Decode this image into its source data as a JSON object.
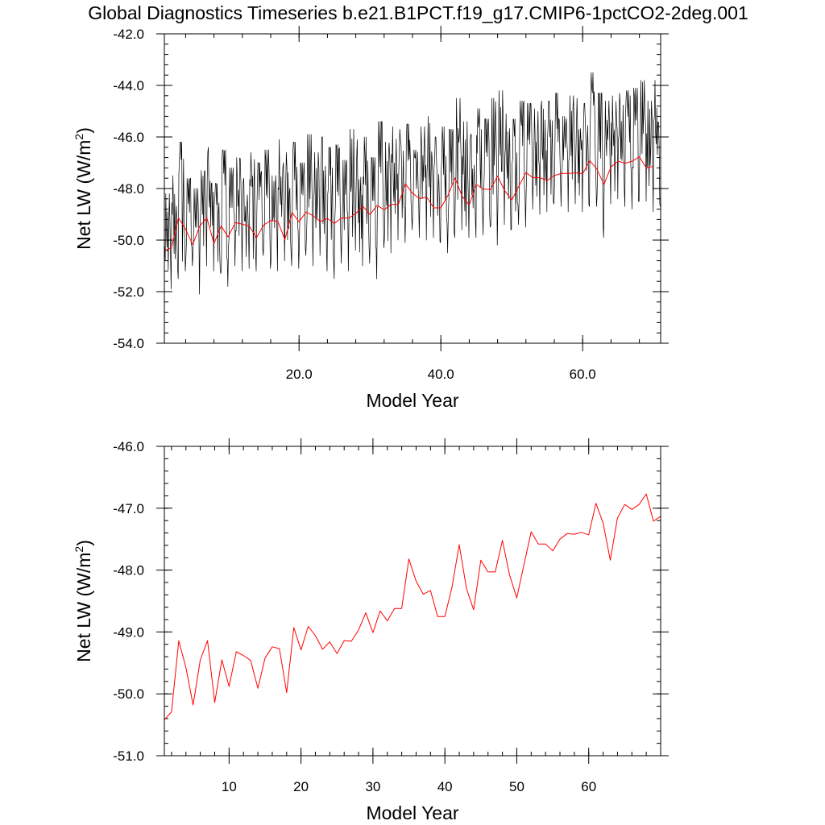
{
  "title": "Global Diagnostics Timeseries b.e21.B1PCT.f19_g17.CMIP6-1pctCO2-2deg.001",
  "colors": {
    "monthly": "#000000",
    "annual": "#ff0000",
    "axes": "#000000"
  },
  "chart_data": [
    {
      "type": "line",
      "name": "top-panel",
      "xlabel": "Model Year",
      "ylabel": "Net LW (W/m",
      "ylabel_sup": "2",
      "ylabel_end": ")",
      "xlim": [
        1,
        71
      ],
      "ylim": [
        -54,
        -42
      ],
      "x_major_ticks": [
        20,
        40,
        60
      ],
      "x_tick_labels": [
        "20.0",
        "40.0",
        "60.0"
      ],
      "x_minor_step": 4,
      "y_major_ticks": [
        -54,
        -52,
        -50,
        -48,
        -46,
        -44,
        -42
      ],
      "y_tick_labels": [
        "-54.0",
        "-52.0",
        "-50.0",
        "-48.0",
        "-46.0",
        "-44.0",
        "-42.0"
      ],
      "y_minor_step": 0.4,
      "series": [
        {
          "name": "monthly",
          "description": "monthly mean net LW (Jan-Dec each model year)",
          "color": "#000000",
          "x_start": 1.0417,
          "x_step": 0.08333,
          "annual_peaks": [
            -48.2,
            -47.5,
            -46.2,
            -47.6,
            -48.0,
            -47.3,
            -46.4,
            -47.8,
            -46.5,
            -47.2,
            -46.8,
            -47.6,
            -46.6,
            -47.0,
            -46.5,
            -47.5,
            -46.1,
            -46.6,
            -46.2,
            -47.0,
            -45.9,
            -46.6,
            -46.0,
            -46.4,
            -46.3,
            -46.9,
            -45.7,
            -46.1,
            -46.0,
            -46.8,
            -45.4,
            -46.2,
            -45.6,
            -45.7,
            -45.5,
            -46.5,
            -45.6,
            -45.2,
            -46.0,
            -45.6,
            -45.7,
            -44.5,
            -45.4,
            -45.9,
            -44.9,
            -45.3,
            -44.5,
            -44.2,
            -45.1,
            -45.3,
            -44.6,
            -44.7,
            -44.9,
            -44.6,
            -44.6,
            -44.3,
            -45.2,
            -44.4,
            -44.5,
            -44.7,
            -43.5,
            -44.3,
            -44.6,
            -44.4,
            -44.3,
            -44.2,
            -44.1,
            -43.8,
            -44.6,
            -43.8
          ],
          "annual_troughs": [
            -51.9,
            -51.5,
            -51.2,
            -51.0,
            -52.1,
            -51.0,
            -51.2,
            -51.3,
            -51.8,
            -51.0,
            -51.2,
            -51.1,
            -51.2,
            -50.6,
            -51.1,
            -51.2,
            -50.8,
            -51.0,
            -51.1,
            -50.6,
            -51.0,
            -50.6,
            -51.2,
            -51.5,
            -50.9,
            -51.2,
            -50.4,
            -51.0,
            -50.9,
            -51.5,
            -50.3,
            -50.5,
            -50.0,
            -50.1,
            -49.6,
            -49.9,
            -50.0,
            -49.9,
            -50.1,
            -50.5,
            -49.9,
            -49.6,
            -49.9,
            -49.9,
            -49.8,
            -49.5,
            -50.2,
            -49.4,
            -49.6,
            -49.4,
            -49.5,
            -48.8,
            -49.0,
            -48.9,
            -48.6,
            -48.7,
            -48.9,
            -48.6,
            -48.9,
            -48.7,
            -48.7,
            -49.9,
            -48.6,
            -48.4,
            -48.7,
            -48.8,
            -48.5,
            -48.5,
            -48.9,
            -48.7
          ]
        },
        {
          "name": "annual",
          "description": "annual mean net LW",
          "color": "#ff0000",
          "x": [
            1,
            2,
            3,
            4,
            5,
            6,
            7,
            8,
            9,
            10,
            11,
            12,
            13,
            14,
            15,
            16,
            17,
            18,
            19,
            20,
            21,
            22,
            23,
            24,
            25,
            26,
            27,
            28,
            29,
            30,
            31,
            32,
            33,
            34,
            35,
            36,
            37,
            38,
            39,
            40,
            41,
            42,
            43,
            44,
            45,
            46,
            47,
            48,
            49,
            50,
            51,
            52,
            53,
            54,
            55,
            56,
            57,
            58,
            59,
            60,
            61,
            62,
            63,
            64,
            65,
            66,
            67,
            68,
            69,
            70
          ],
          "values": [
            -50.42,
            -50.29,
            -49.14,
            -49.58,
            -50.18,
            -49.45,
            -49.14,
            -50.14,
            -49.45,
            -49.88,
            -49.32,
            -49.38,
            -49.46,
            -49.91,
            -49.42,
            -49.24,
            -49.27,
            -49.98,
            -48.93,
            -49.29,
            -48.91,
            -49.06,
            -49.28,
            -49.16,
            -49.35,
            -49.14,
            -49.15,
            -48.97,
            -48.69,
            -49.01,
            -48.66,
            -48.82,
            -48.62,
            -48.62,
            -47.82,
            -48.18,
            -48.39,
            -48.33,
            -48.75,
            -48.75,
            -48.27,
            -47.59,
            -48.3,
            -48.64,
            -47.84,
            -48.03,
            -48.03,
            -47.52,
            -48.08,
            -48.45,
            -47.91,
            -47.38,
            -47.58,
            -47.58,
            -47.69,
            -47.5,
            -47.41,
            -47.42,
            -47.39,
            -47.43,
            -46.92,
            -47.24,
            -47.84,
            -47.16,
            -46.94,
            -47.02,
            -46.94,
            -46.77,
            -47.21,
            -47.13
          ]
        }
      ]
    },
    {
      "type": "line",
      "name": "bottom-panel",
      "xlabel": "Model Year",
      "ylabel": "Net LW (W/m",
      "ylabel_sup": "2",
      "ylabel_end": ")",
      "xlim": [
        1,
        70
      ],
      "ylim": [
        -51,
        -46
      ],
      "x_major_ticks": [
        10,
        20,
        30,
        40,
        50,
        60
      ],
      "x_tick_labels": [
        "10",
        "20",
        "30",
        "40",
        "50",
        "60"
      ],
      "x_minor_step": 2,
      "y_major_ticks": [
        -51,
        -50,
        -49,
        -48,
        -47,
        -46
      ],
      "y_tick_labels": [
        "-51.0",
        "-50.0",
        "-49.0",
        "-48.0",
        "-47.0",
        "-46.0"
      ],
      "y_minor_step": 0.2,
      "series": [
        {
          "name": "annual",
          "color": "#ff0000",
          "x": [
            1,
            2,
            3,
            4,
            5,
            6,
            7,
            8,
            9,
            10,
            11,
            12,
            13,
            14,
            15,
            16,
            17,
            18,
            19,
            20,
            21,
            22,
            23,
            24,
            25,
            26,
            27,
            28,
            29,
            30,
            31,
            32,
            33,
            34,
            35,
            36,
            37,
            38,
            39,
            40,
            41,
            42,
            43,
            44,
            45,
            46,
            47,
            48,
            49,
            50,
            51,
            52,
            53,
            54,
            55,
            56,
            57,
            58,
            59,
            60,
            61,
            62,
            63,
            64,
            65,
            66,
            67,
            68,
            69,
            70
          ],
          "values": [
            -50.42,
            -50.29,
            -49.14,
            -49.58,
            -50.18,
            -49.45,
            -49.14,
            -50.14,
            -49.45,
            -49.88,
            -49.32,
            -49.38,
            -49.46,
            -49.91,
            -49.42,
            -49.24,
            -49.27,
            -49.98,
            -48.93,
            -49.29,
            -48.91,
            -49.06,
            -49.28,
            -49.16,
            -49.35,
            -49.14,
            -49.15,
            -48.97,
            -48.69,
            -49.01,
            -48.66,
            -48.82,
            -48.62,
            -48.62,
            -47.82,
            -48.18,
            -48.39,
            -48.33,
            -48.75,
            -48.75,
            -48.27,
            -47.59,
            -48.3,
            -48.64,
            -47.84,
            -48.03,
            -48.03,
            -47.52,
            -48.08,
            -48.45,
            -47.91,
            -47.38,
            -47.58,
            -47.58,
            -47.69,
            -47.5,
            -47.41,
            -47.42,
            -47.39,
            -47.43,
            -46.92,
            -47.24,
            -47.84,
            -47.16,
            -46.94,
            -47.02,
            -46.94,
            -46.77,
            -47.21,
            -47.13
          ]
        }
      ]
    }
  ]
}
